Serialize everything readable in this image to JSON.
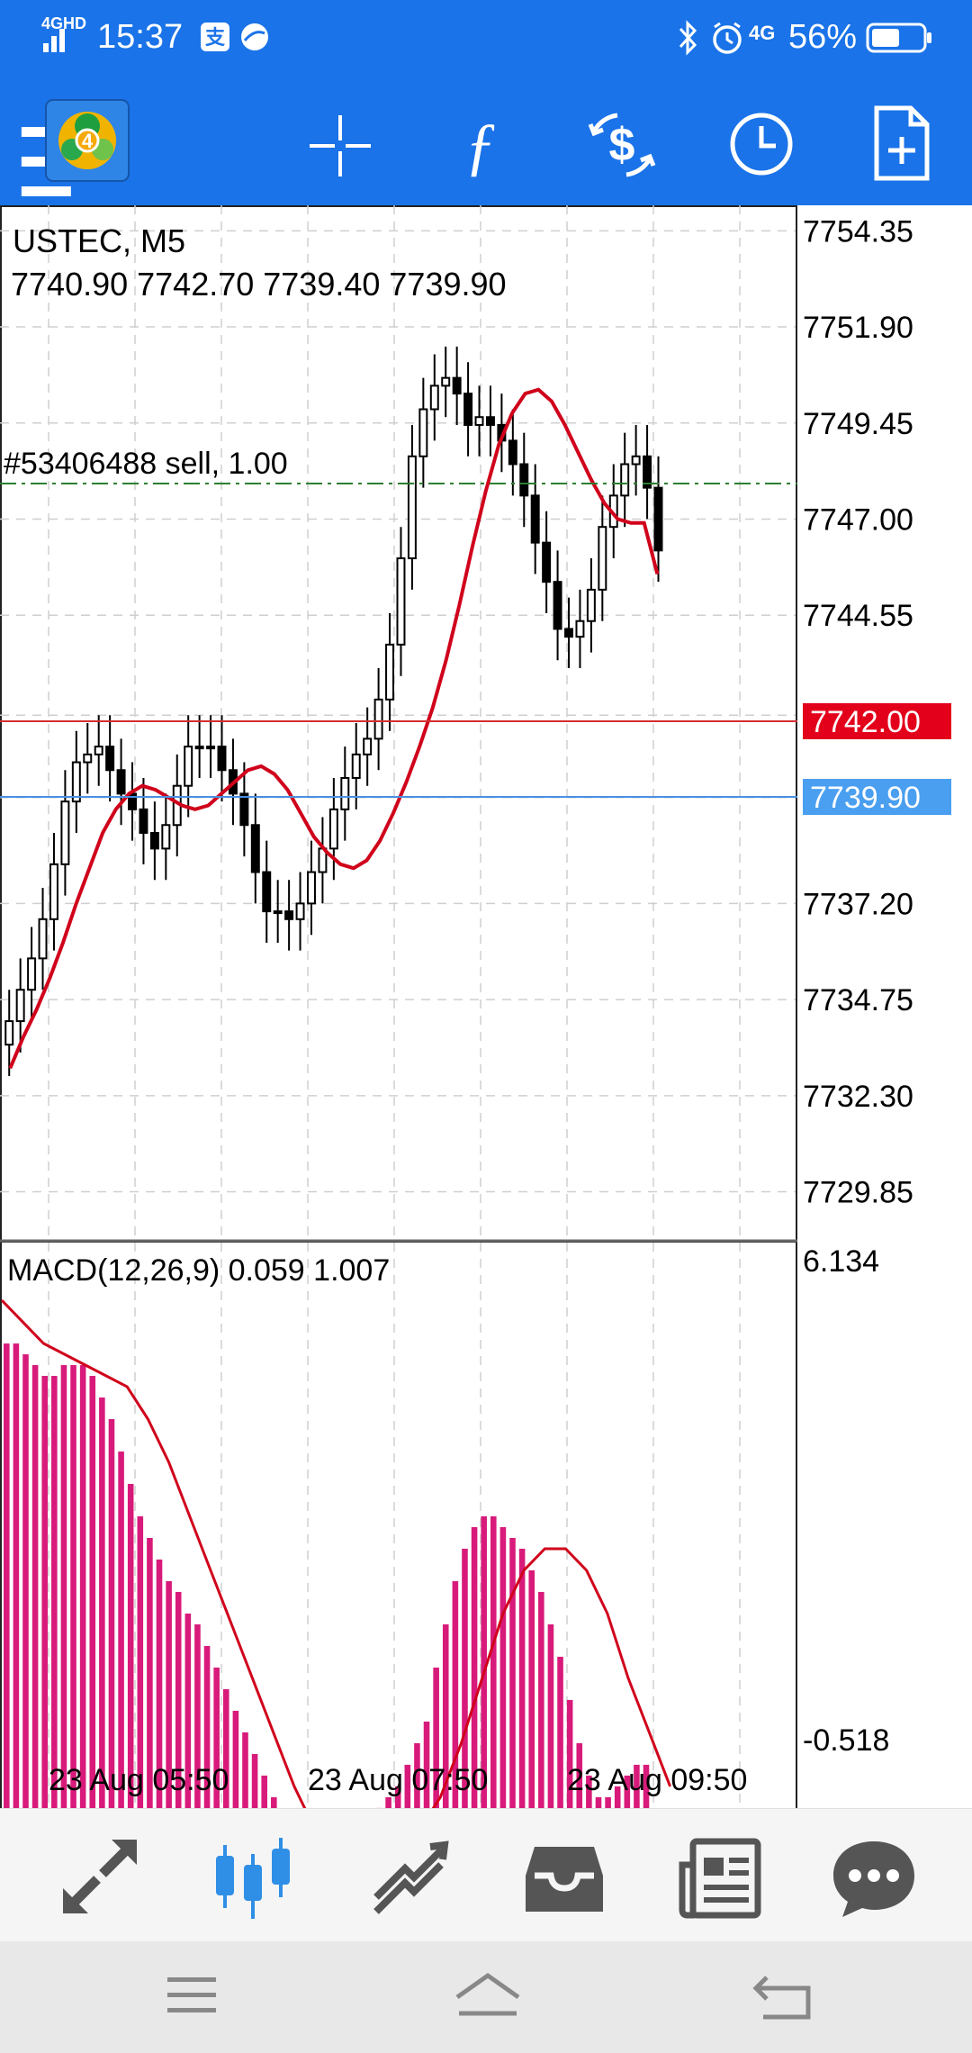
{
  "status_bar": {
    "network": "4GHD",
    "time": "15:37",
    "right_network": "4G",
    "battery_percent": "56%",
    "battery_level": 0.56,
    "icons": [
      "alipay-icon",
      "app-icon",
      "bluetooth-icon",
      "alarm-icon",
      "battery-icon"
    ]
  },
  "toolbar": {
    "items": [
      "menu-icon",
      "metatrader-logo",
      "crosshair-icon",
      "function-icon",
      "trade-icon",
      "clock-icon",
      "new-document-icon"
    ]
  },
  "chart": {
    "symbol_line": "USTEC, M5",
    "ohlc_line": "7740.90 7742.70 7739.40 7739.90",
    "order_label": "#53406488 sell, 1.00",
    "price_ticks": [
      "7754.35",
      "7751.90",
      "7749.45",
      "7747.00",
      "7744.55",
      "7742.00",
      "7739.90",
      "7737.20",
      "7734.75",
      "7732.30",
      "7729.85"
    ],
    "sell_price_label": "7742.00",
    "bid_price_label": "7739.90",
    "macd_label": "MACD(12,26,9) 0.059 1.007",
    "macd_top": "6.134",
    "macd_bottom": "-0.518",
    "time_labels": [
      "23 Aug 05:50",
      "23 Aug 07:50",
      "23 Aug 09:50"
    ],
    "colors": {
      "bull_fill": "#ffffff",
      "bear_fill": "#000000",
      "ma_line": "#d0021b",
      "order_line": "#2e7d32",
      "ask_line": "#d32f2f",
      "bid_line": "#4a90e2",
      "macd_bars": "#d81b7a",
      "macd_signal": "#d0021b"
    }
  },
  "chart_data": [
    {
      "type": "line",
      "title": "USTEC, M5",
      "ylim": [
        7728.6,
        7755.0
      ],
      "series": [
        {
          "name": "",
          "values": [
            7734.2,
            7735.0,
            7735.8,
            7736.8,
            7738.2,
            7739.8,
            7740.8,
            7741.0,
            7741.2,
            7740.6,
            7740.0,
            7739.6,
            7739.0,
            7738.6,
            7739.2,
            7740.2,
            7741.2,
            7741.2,
            7741.2,
            7740.6,
            7740.0,
            7739.2,
            7738.0,
            7737.0,
            7737.0,
            7736.8,
            7737.2,
            7738.0,
            7738.6,
            7739.6,
            7740.4,
            7741.0,
            7741.4,
            7742.4,
            7743.8,
            7746.0,
            7748.6,
            7749.8,
            7750.4,
            7750.6,
            7750.2,
            7749.4,
            7749.6,
            7749.4,
            7749.0,
            7748.4,
            7747.6,
            7746.4,
            7745.4,
            7744.2,
            7744.0,
            7744.4,
            7745.2,
            7746.8,
            7747.6,
            7748.4,
            7748.6,
            7747.8,
            7746.2
          ],
          "kind": "candle_close_estimate"
        },
        {
          "name": "",
          "values": [
            7733.0,
            7733.8,
            7734.5,
            7735.3,
            7736.2,
            7737.2,
            7738.1,
            7739.0,
            7739.6,
            7740.0,
            7740.2,
            7740.1,
            7739.9,
            7739.7,
            7739.6,
            7739.7,
            7740.0,
            7740.3,
            7740.6,
            7740.7,
            7740.5,
            7740.1,
            7739.5,
            7738.9,
            7738.5,
            7738.2,
            7738.1,
            7738.3,
            7738.8,
            7739.5,
            7740.3,
            7741.2,
            7742.2,
            7743.4,
            7744.8,
            7746.3,
            7747.7,
            7748.9,
            7749.7,
            7750.2,
            7750.3,
            7750.0,
            7749.4,
            7748.7,
            7748.0,
            7747.4,
            7747.0,
            7746.9,
            7746.9,
            7745.6
          ],
          "kind": "moving_average"
        }
      ]
    },
    {
      "type": "bar",
      "title": "MACD(12,26,9) 0.059 1.007",
      "ylim": [
        -0.518,
        6.134
      ],
      "series": [
        {
          "name": "",
          "values": [
            5.2,
            5.2,
            5.1,
            5.0,
            4.9,
            4.9,
            5.0,
            5.0,
            5.0,
            4.9,
            4.7,
            4.5,
            4.2,
            3.9,
            3.6,
            3.4,
            3.2,
            3.0,
            2.9,
            2.7,
            2.6,
            2.4,
            2.2,
            2.0,
            1.8,
            1.6,
            1.4,
            1.2,
            1.0,
            0.8,
            0.6,
            0.5,
            0.4,
            0.3,
            0.4,
            0.5,
            0.6,
            0.7,
            0.8,
            0.9,
            1.0,
            1.1,
            1.3,
            1.5,
            1.7,
            2.2,
            2.6,
            3.0,
            3.3,
            3.5,
            3.6,
            3.6,
            3.5,
            3.4,
            3.3,
            3.1,
            2.9,
            2.6,
            2.3,
            1.9,
            1.5,
            1.2,
            1.0,
            1.0,
            1.1,
            1.2,
            1.3,
            1.3,
            0.4,
            0.1
          ]
        },
        {
          "name": "",
          "values": [
            5.6,
            5.4,
            5.2,
            5.1,
            5.0,
            4.9,
            4.8,
            4.5,
            4.1,
            3.6,
            3.1,
            2.6,
            2.1,
            1.6,
            1.1,
            0.7,
            0.5,
            0.4,
            0.4,
            0.5,
            0.7,
            1.0,
            1.5,
            2.1,
            2.7,
            3.1,
            3.3,
            3.3,
            3.1,
            2.7,
            2.1,
            1.6,
            1.1
          ]
        }
      ]
    }
  ],
  "bottom_nav": {
    "items": [
      "quotes-icon",
      "chart-icon",
      "trade-icon",
      "history-icon",
      "news-icon",
      "messages-icon"
    ],
    "active": "chart-icon"
  },
  "system_nav": {
    "items": [
      "menu-icon",
      "home-icon",
      "back-icon"
    ]
  }
}
